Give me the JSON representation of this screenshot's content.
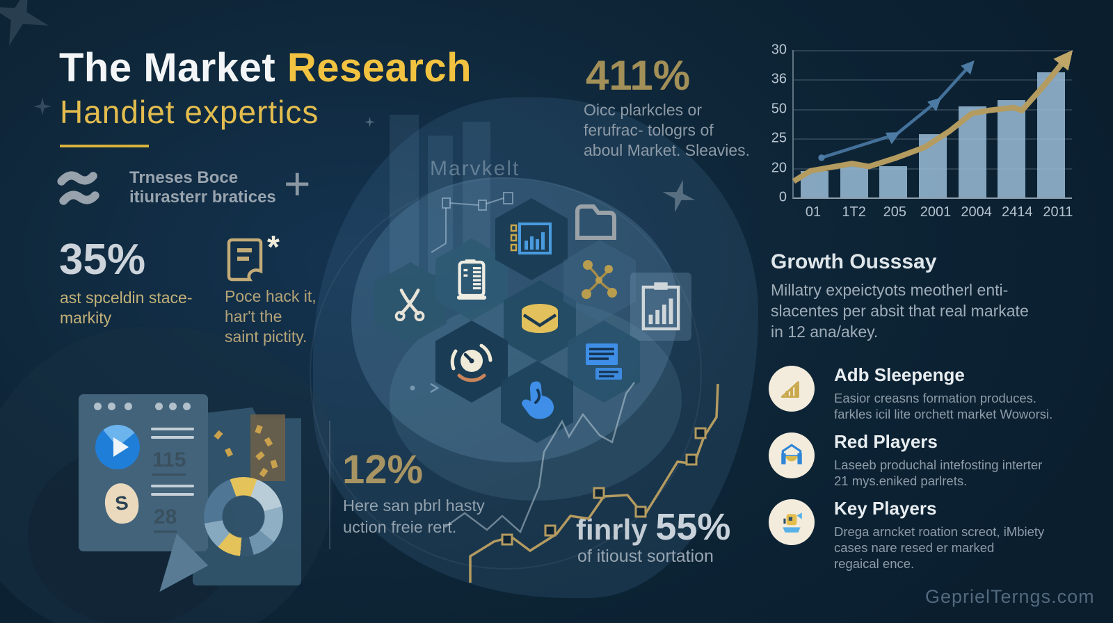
{
  "title": {
    "part_white": "The Market ",
    "part_yellow": "Research",
    "subtitle": "Handiet expertics"
  },
  "brand": {
    "line1": "Trneses Boce",
    "line2": "itiurasterr bratices",
    "plus_glyph": "+"
  },
  "ghost_label": "Marvkelt",
  "stat_411": {
    "value": "411%",
    "lines": [
      "Oicc plarkcles or",
      "ferufrac- tologrs of",
      "aboul Market. Sleavies."
    ]
  },
  "stat_35": {
    "value": "35%",
    "lines": [
      "ast spceldin stace-",
      "markity"
    ]
  },
  "doc_note": {
    "asterisk": "*",
    "lines": [
      "Poce hack it,",
      "har't the",
      "saint pictity."
    ]
  },
  "stat_12": {
    "value": "12%",
    "lines": [
      "Here san pbrl hasty",
      "uction freie rert."
    ]
  },
  "stat_55": {
    "prefix": "finrly ",
    "value": "55%",
    "desc": "of itioust sortation"
  },
  "growth": {
    "heading": "Growth Ousssay",
    "lines": [
      "Millatry expeictyots meotherl enti-",
      "slacentes per absit that real markate",
      "in 12 ana/akey."
    ]
  },
  "players": [
    {
      "title": "Adb Sleepenge",
      "lines": [
        "Easior creasns formation produces.",
        "farkles icil lite orchett market Woworsi."
      ]
    },
    {
      "title": "Red Players",
      "lines": [
        "Laseeb produchal intefosting interter",
        "21 mys.eniked parlrets."
      ]
    },
    {
      "title": "Key Players",
      "lines": [
        "Drega arncket roation screot, iMbiety",
        "cases nare resed er marked",
        "regaical ence."
      ]
    }
  ],
  "device_panel": {
    "metric_top": "115",
    "metric_bottom": "28",
    "currency_glyph": "S"
  },
  "watermark": "GeprielTerngs.com",
  "colors": {
    "background": "#0d2435",
    "accent_yellow": "#f2c340",
    "accent_gold": "#a79360",
    "text_gray": "#8e9ba7",
    "text_white": "#eef2f4"
  },
  "chart_data": {
    "type": "bar",
    "title": "",
    "xlabel": "",
    "ylabel": "",
    "categories": [
      "01",
      "1T2",
      "205",
      "2001",
      "2004",
      "2414",
      "2011"
    ],
    "y_tick_labels_top_to_bottom": [
      "30",
      "36",
      "50",
      "25",
      "20",
      "0"
    ],
    "bar_values_pct_of_axis": [
      18,
      22,
      21,
      43,
      62,
      66,
      85
    ],
    "bar_color": "#9abcd6",
    "grid": true,
    "legend": null,
    "overlay_lines": [
      {
        "name": "gold trend arrow",
        "color": "#b49b60",
        "points_pct": [
          [
            0,
            11
          ],
          [
            6,
            18
          ],
          [
            21,
            23
          ],
          [
            27,
            21
          ],
          [
            37,
            27
          ],
          [
            47,
            34
          ],
          [
            56,
            45
          ],
          [
            64,
            57
          ],
          [
            70,
            59
          ],
          [
            79,
            61
          ],
          [
            82,
            59
          ],
          [
            90,
            76
          ],
          [
            99,
            97
          ]
        ]
      },
      {
        "name": "blue trend arrow",
        "color": "#44719a",
        "points_pct": [
          [
            10,
            27
          ],
          [
            37,
            43
          ],
          [
            52,
            66
          ],
          [
            64,
            91
          ]
        ]
      }
    ]
  }
}
